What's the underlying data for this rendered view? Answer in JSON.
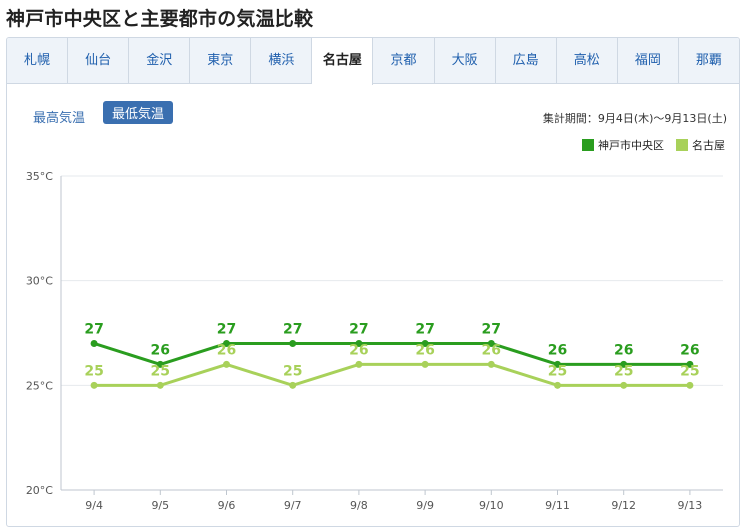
{
  "page": {
    "title": "神戸市中央区と主要都市の気温比較"
  },
  "tabs": [
    {
      "label": "札幌"
    },
    {
      "label": "仙台"
    },
    {
      "label": "金沢"
    },
    {
      "label": "東京"
    },
    {
      "label": "横浜"
    },
    {
      "label": "名古屋",
      "active": true
    },
    {
      "label": "京都"
    },
    {
      "label": "大阪"
    },
    {
      "label": "広島"
    },
    {
      "label": "高松"
    },
    {
      "label": "福岡"
    },
    {
      "label": "那覇"
    }
  ],
  "toggle": {
    "high_label": "最高気温",
    "low_label": "最低気温",
    "selected": "low"
  },
  "period_text": "集計期間：9月4日(木)〜9月13日(土)",
  "colors": {
    "series1": "#2a9d1f",
    "series2": "#a8d15a",
    "active_button": "#3a6fb0",
    "tab_link": "#1f5fad"
  },
  "chart_data": {
    "type": "line",
    "title": "",
    "xlabel": "",
    "ylabel": "",
    "x": [
      "9/4",
      "9/5",
      "9/6",
      "9/7",
      "9/8",
      "9/9",
      "9/10",
      "9/11",
      "9/12",
      "9/13"
    ],
    "y_ticks": [
      "20°C",
      "25°C",
      "30°C",
      "35°C"
    ],
    "ylim": [
      20,
      35
    ],
    "grid": true,
    "legend_position": "top-right",
    "series": [
      {
        "name": "神戸市中央区",
        "values": [
          27,
          26,
          27,
          27,
          27,
          27,
          27,
          26,
          26,
          26
        ]
      },
      {
        "name": "名古屋",
        "values": [
          25,
          25,
          26,
          25,
          26,
          26,
          26,
          25,
          25,
          25
        ]
      }
    ]
  }
}
